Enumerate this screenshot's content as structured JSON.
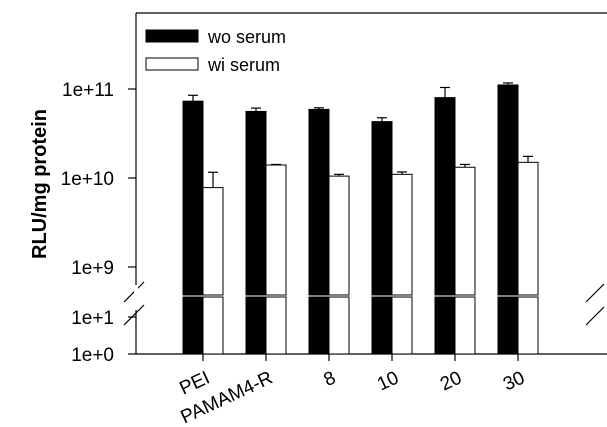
{
  "chart_data": {
    "type": "bar",
    "title": "",
    "xlabel": "",
    "ylabel": "RLU/mg protein",
    "y_scale": "log",
    "y_axis_break": {
      "below": 1000000000.0,
      "above": 10
    },
    "y_ticks": [
      {
        "value": 1,
        "label": "1e+0"
      },
      {
        "value": 10,
        "label": "1e+1"
      },
      {
        "value": 1000000000,
        "label": "1e+9"
      },
      {
        "value": 10000000000,
        "label": "1e+10"
      },
      {
        "value": 100000000000,
        "label": "1e+11"
      }
    ],
    "categories": [
      "PEI",
      "PAMAM4-R",
      "8",
      "10",
      "20",
      "30"
    ],
    "series": [
      {
        "name": "wo serum",
        "color": "#000000",
        "values": [
          73000000000,
          56000000000,
          59000000000,
          43000000000,
          80000000000,
          111000000000
        ],
        "error": [
          12000000000,
          5000000000,
          2500000000,
          4500000000,
          24000000000,
          6000000000
        ]
      },
      {
        "name": "wi serum",
        "color": "#ffffff",
        "values": [
          7800000000,
          14000000000,
          10500000000,
          11000000000,
          13200000000,
          15000000000
        ],
        "error": [
          3800000000,
          200000000,
          500000000,
          700000000,
          1000000000,
          2500000000
        ]
      }
    ],
    "legend": {
      "position": "top-left",
      "entries": [
        "wo serum",
        "wi serum"
      ]
    },
    "grid": false
  }
}
